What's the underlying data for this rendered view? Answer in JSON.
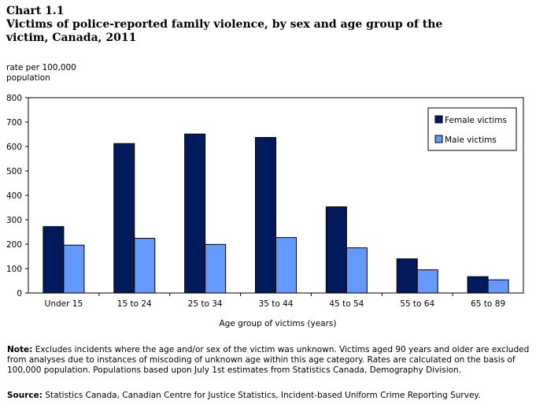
{
  "chart_number": "Chart 1.1",
  "notes": {
    "note_label": "Note:",
    "note_text": "Excludes incidents where the age and/or sex of the victim was unknown. Victims aged 90 years and older are excluded from analyses due to instances of miscoding of unknown age within this age category. Rates are calculated on the basis of 100,000 population. Populations based upon July 1st estimates from Statistics Canada, Demography Division.",
    "source_label": "Source:",
    "source_text": "Statistics Canada, Canadian Centre for Justice Statistics, Incident-based Uniform Crime Reporting Survey."
  },
  "chart_data": {
    "type": "bar",
    "title": "Victims of police-reported family violence, by sex and age group of the victim, Canada, 2011",
    "ylabel": "rate per 100,000 population",
    "xlabel": "Age group of victims (years)",
    "categories": [
      "Under 15",
      "15 to 24",
      "25 to 34",
      "35 to 44",
      "45 to 54",
      "55 to 64",
      "65 to 89"
    ],
    "series": [
      {
        "name": "Female victims",
        "color": "#001a5c",
        "values": [
          272,
          612,
          651,
          637,
          353,
          140,
          67
        ]
      },
      {
        "name": "Male victims",
        "color": "#6699ff",
        "values": [
          196,
          224,
          199,
          227,
          185,
          95,
          54
        ]
      }
    ],
    "ylim": [
      0,
      800
    ],
    "yticks": [
      0,
      100,
      200,
      300,
      400,
      500,
      600,
      700,
      800
    ],
    "grid": false,
    "legend_position": "top-right"
  }
}
